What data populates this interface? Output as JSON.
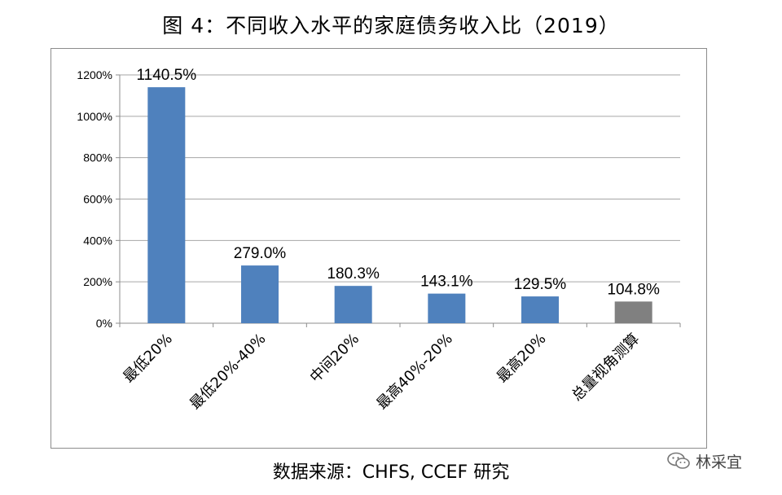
{
  "header": {
    "title": "图 4：不同收入水平的家庭债务收入比（2019）"
  },
  "footer": {
    "source": "数据来源：CHFS, CCEF 研究"
  },
  "watermark": {
    "text": "林采宜",
    "icon": "wechat-icon"
  },
  "chart_data": {
    "type": "bar",
    "title": "图 4：不同收入水平的家庭债务收入比（2019）",
    "categories": [
      "最低20%",
      "最低20%-40%",
      "中间20%",
      "最高40%-20%",
      "最高20%",
      "总量视角测算"
    ],
    "values": [
      1140.5,
      279.0,
      180.3,
      143.1,
      129.5,
      104.8
    ],
    "data_labels": [
      "1140.5%",
      "279.0%",
      "180.3%",
      "143.1%",
      "129.5%",
      "104.8%"
    ],
    "ylim": [
      0,
      1200
    ],
    "yticks": [
      0,
      200,
      400,
      600,
      800,
      1000,
      1200
    ],
    "ytick_labels": [
      "0%",
      "200%",
      "400%",
      "600%",
      "800%",
      "1000%",
      "1200%"
    ],
    "xlabel": "",
    "ylabel": "",
    "grid": true,
    "legend": "none",
    "colors": [
      "#4f81bd",
      "#4f81bd",
      "#4f81bd",
      "#4f81bd",
      "#4f81bd",
      "#808080"
    ]
  }
}
